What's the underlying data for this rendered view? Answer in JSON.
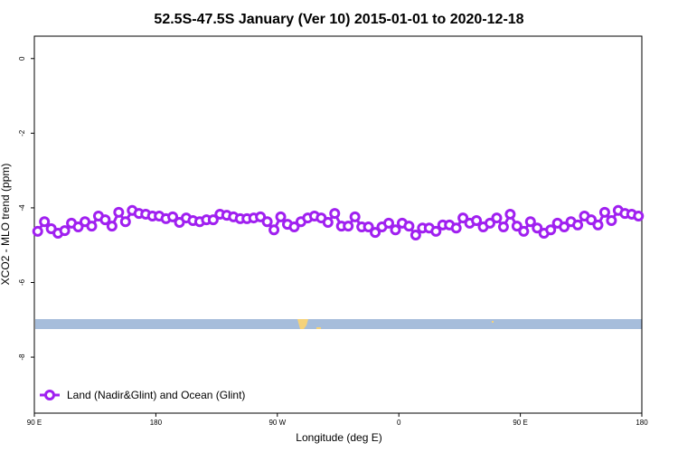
{
  "chart_data": {
    "type": "line",
    "title": "52.5S-47.5S January (Ver 10)   2015-01-01 to 2020-12-18",
    "x_label": "Longitude (deg E)",
    "y_label": "XCO2 - MLO trend (ppm)",
    "xlim": [
      90,
      540
    ],
    "xticks": [
      {
        "value": 90,
        "label": "90 E"
      },
      180,
      {
        "value": 270,
        "label": "90 W"
      },
      {
        "value": 360,
        "label": "0"
      },
      {
        "value": 450,
        "label": "90 E"
      },
      {
        "value": 540,
        "label": "180"
      }
    ],
    "ylim": [
      -9.5,
      0.6
    ],
    "yticks": [
      0,
      -2,
      -4,
      -6,
      -8
    ],
    "legend": "bottom-left",
    "x": [
      92.5,
      97.5,
      102.5,
      107.5,
      112.5,
      117.5,
      122.5,
      127.5,
      132.5,
      137.5,
      142.5,
      147.5,
      152.5,
      157.5,
      162.5,
      167.5,
      172.5,
      177.5,
      182.5,
      187.5,
      192.5,
      197.5,
      202.5,
      207.5,
      212.5,
      217.5,
      222.5,
      227.5,
      232.5,
      237.5,
      242.5,
      247.5,
      252.5,
      257.5,
      262.5,
      267.5,
      272.5,
      277.5,
      282.5,
      287.5,
      292.5,
      297.5,
      302.5,
      307.5,
      312.5,
      317.5,
      322.5,
      327.5,
      332.5,
      337.5,
      342.5,
      347.5,
      352.5,
      357.5,
      362.5,
      367.5,
      372.5,
      377.5,
      382.5,
      387.5,
      392.5,
      397.5,
      402.5,
      407.5,
      412.5,
      417.5,
      422.5,
      427.5,
      432.5,
      437.5,
      442.5,
      447.5,
      452.5,
      457.5,
      462.5,
      467.5,
      472.5,
      477.5,
      482.5,
      487.5,
      492.5,
      497.5,
      502.5,
      507.5,
      512.5,
      517.5,
      522.5,
      527.5,
      532.5,
      537.5
    ],
    "series": [
      {
        "name": "Land (Nadir&Glint) and Ocean (Glint)",
        "color": "#a020f0",
        "values": [
          -4.63,
          -4.37,
          -4.56,
          -4.68,
          -4.61,
          -4.41,
          -4.51,
          -4.37,
          -4.49,
          -4.22,
          -4.32,
          -4.49,
          -4.12,
          -4.37,
          -4.07,
          -4.15,
          -4.17,
          -4.22,
          -4.22,
          -4.29,
          -4.24,
          -4.39,
          -4.27,
          -4.34,
          -4.37,
          -4.32,
          -4.32,
          -4.17,
          -4.2,
          -4.24,
          -4.29,
          -4.29,
          -4.27,
          -4.24,
          -4.37,
          -4.59,
          -4.24,
          -4.44,
          -4.51,
          -4.37,
          -4.27,
          -4.22,
          -4.27,
          -4.39,
          -4.15,
          -4.49,
          -4.49,
          -4.24,
          -4.51,
          -4.51,
          -4.66,
          -4.51,
          -4.41,
          -4.59,
          -4.41,
          -4.49,
          -4.73,
          -4.54,
          -4.54,
          -4.63,
          -4.46,
          -4.46,
          -4.54,
          -4.27,
          -4.41,
          -4.34,
          -4.51,
          -4.41,
          -4.27,
          -4.51,
          -4.17,
          -4.49,
          -4.63,
          -4.37,
          -4.54,
          -4.68,
          -4.59,
          -4.41,
          -4.51,
          -4.37,
          -4.46,
          -4.22,
          -4.32,
          -4.46,
          -4.12,
          -4.34,
          -4.07,
          -4.15,
          -4.17,
          -4.22
        ]
      }
    ]
  }
}
